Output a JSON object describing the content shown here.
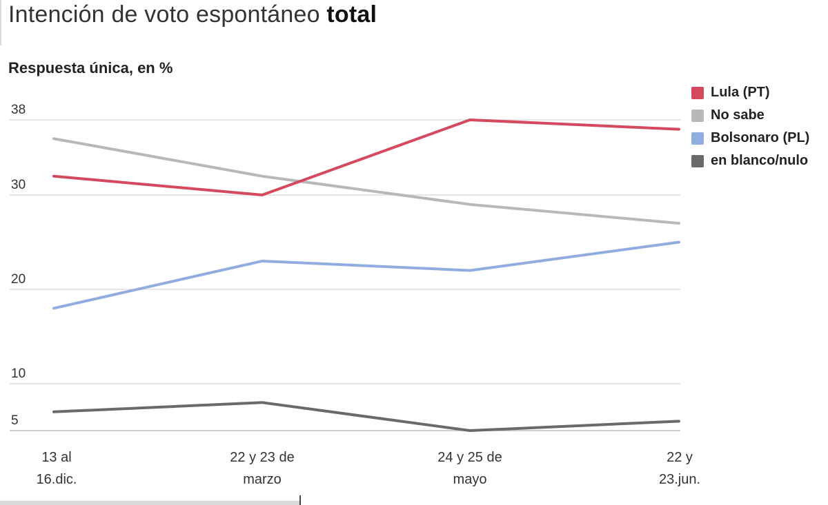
{
  "header": {
    "title_regular": "Intención de voto espontáneo",
    "title_bold": "total",
    "subtitle": "Respuesta única, en %"
  },
  "chart_data": {
    "type": "line",
    "title": "Intención de voto espontáneo total",
    "subtitle": "Respuesta única, en %",
    "x": [
      [
        "13 al",
        "16.dic."
      ],
      [
        "22 y 23 de",
        "marzo"
      ],
      [
        "24 y 25 de",
        "mayo"
      ],
      [
        "22 y",
        "23.jun."
      ]
    ],
    "yticks": [
      5,
      10,
      20,
      30,
      38
    ],
    "ylim": [
      5,
      38
    ],
    "grid": true,
    "legend_position": "top-right",
    "series": [
      {
        "name": "Lula (PT)",
        "color": "#d5495f",
        "values": [
          32,
          30,
          38,
          37
        ]
      },
      {
        "name": "No sabe",
        "color": "#b8b8b8",
        "values": [
          36,
          32,
          29,
          27
        ]
      },
      {
        "name": "Bolsonaro (PL)",
        "color": "#91acdf",
        "values": [
          18,
          23,
          22,
          25
        ]
      },
      {
        "name": "en blanco/nulo",
        "color": "#6a6a6a",
        "values": [
          7,
          8,
          5,
          6
        ]
      }
    ]
  }
}
